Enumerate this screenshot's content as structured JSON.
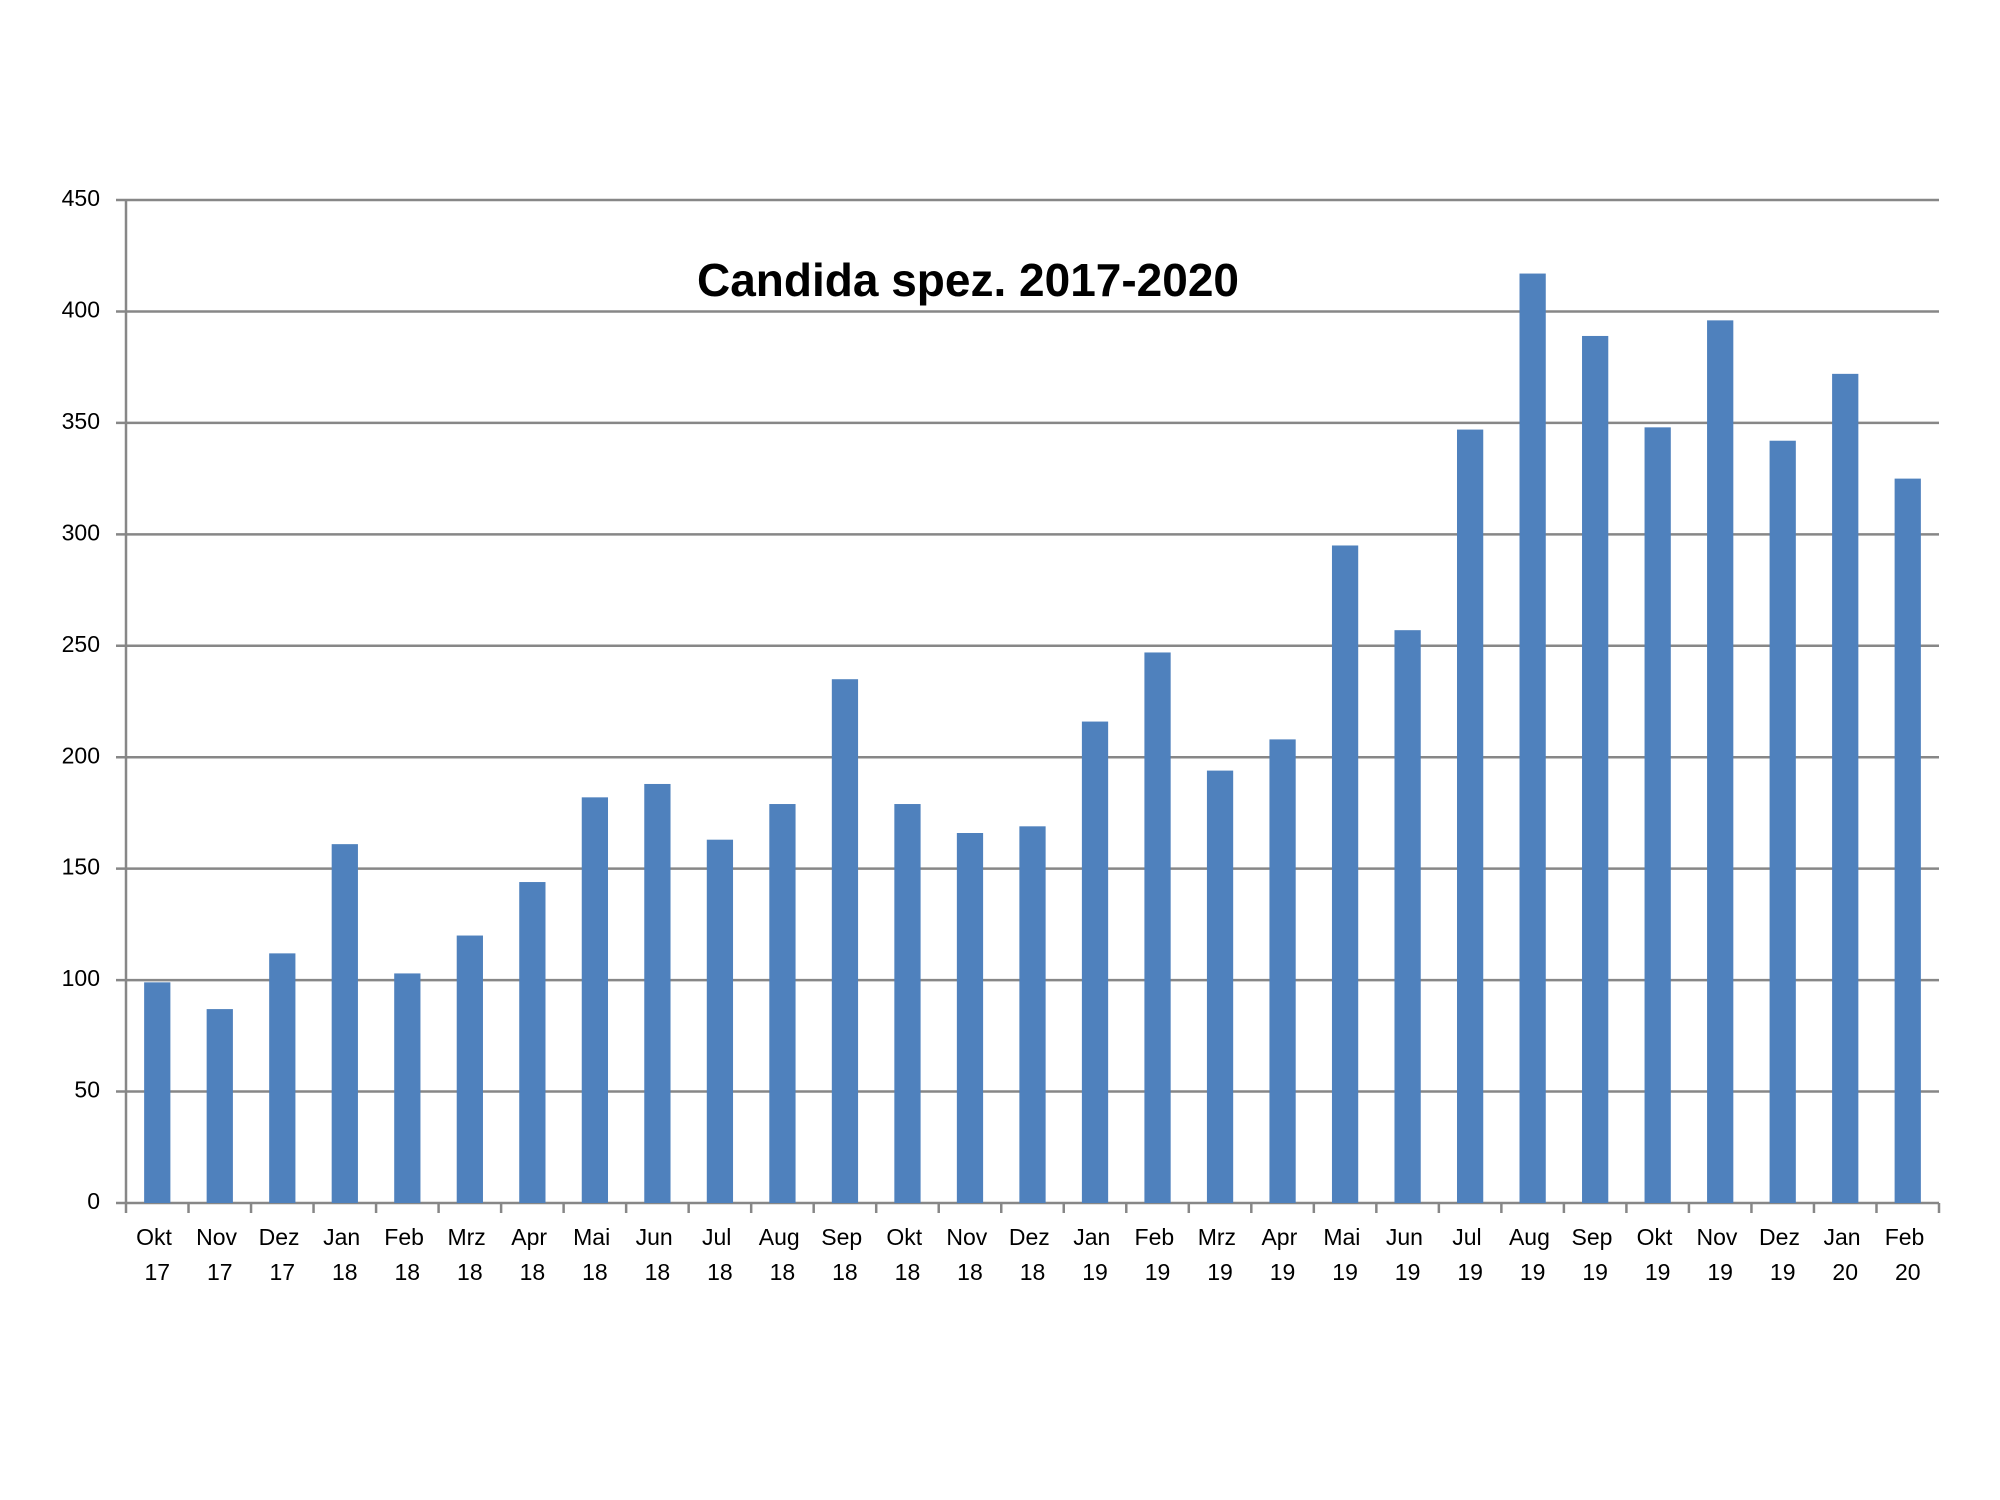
{
  "chart_data": {
    "type": "bar",
    "title": "Candida spez. 2017-2020",
    "categories": [
      "Okt 17",
      "Nov 17",
      "Dez 17",
      "Jan 18",
      "Feb 18",
      "Mrz 18",
      "Apr 18",
      "Mai 18",
      "Jun 18",
      "Jul 18",
      "Aug 18",
      "Sep 18",
      "Okt 18",
      "Nov 18",
      "Dez 18",
      "Jan 19",
      "Feb 19",
      "Mrz 19",
      "Apr 19",
      "Mai 19",
      "Jun 19",
      "Jul 19",
      "Aug 19",
      "Sep 19",
      "Okt 19",
      "Nov 19",
      "Dez 19",
      "Jan 20",
      "Feb 20"
    ],
    "values": [
      99,
      87,
      112,
      161,
      103,
      120,
      144,
      182,
      188,
      163,
      179,
      235,
      179,
      166,
      169,
      216,
      247,
      194,
      208,
      295,
      257,
      347,
      417,
      389,
      348,
      396,
      342,
      372,
      325
    ],
    "color": "#4f81bd",
    "ylim": [
      0,
      450
    ],
    "yticks": [
      0,
      50,
      100,
      150,
      200,
      250,
      300,
      350,
      400,
      450
    ],
    "grid": true
  }
}
